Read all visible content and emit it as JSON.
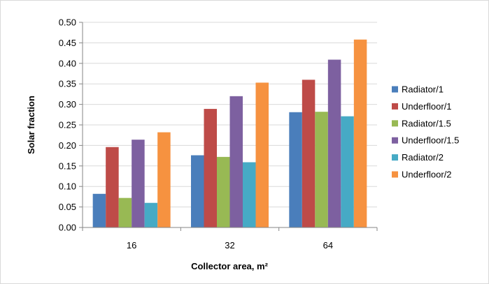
{
  "chart_data": {
    "type": "bar",
    "title": "",
    "xlabel": "Collector area, m²",
    "ylabel": "Solar fraction",
    "categories": [
      "16",
      "32",
      "64"
    ],
    "ylim": [
      0,
      0.5
    ],
    "ytick_step": 0.05,
    "ytick_labels": [
      "0.00",
      "0.05",
      "0.10",
      "0.15",
      "0.20",
      "0.25",
      "0.30",
      "0.35",
      "0.40",
      "0.45",
      "0.50"
    ],
    "grid": true,
    "legend_position": "right",
    "series": [
      {
        "name": "Radiator/1",
        "color": "#4a7ebb",
        "values": [
          0.082,
          0.176,
          0.281
        ]
      },
      {
        "name": "Underfloor/1",
        "color": "#be4b48",
        "values": [
          0.196,
          0.289,
          0.36
        ]
      },
      {
        "name": "Radiator/1.5",
        "color": "#98b954",
        "values": [
          0.072,
          0.172,
          0.282
        ]
      },
      {
        "name": "Underfloor/1.5",
        "color": "#7d60a0",
        "values": [
          0.214,
          0.32,
          0.409
        ]
      },
      {
        "name": "Radiator/2",
        "color": "#46aac5",
        "values": [
          0.06,
          0.159,
          0.271
        ]
      },
      {
        "name": "Underfloor/2",
        "color": "#f69240",
        "values": [
          0.232,
          0.353,
          0.458
        ]
      }
    ]
  }
}
